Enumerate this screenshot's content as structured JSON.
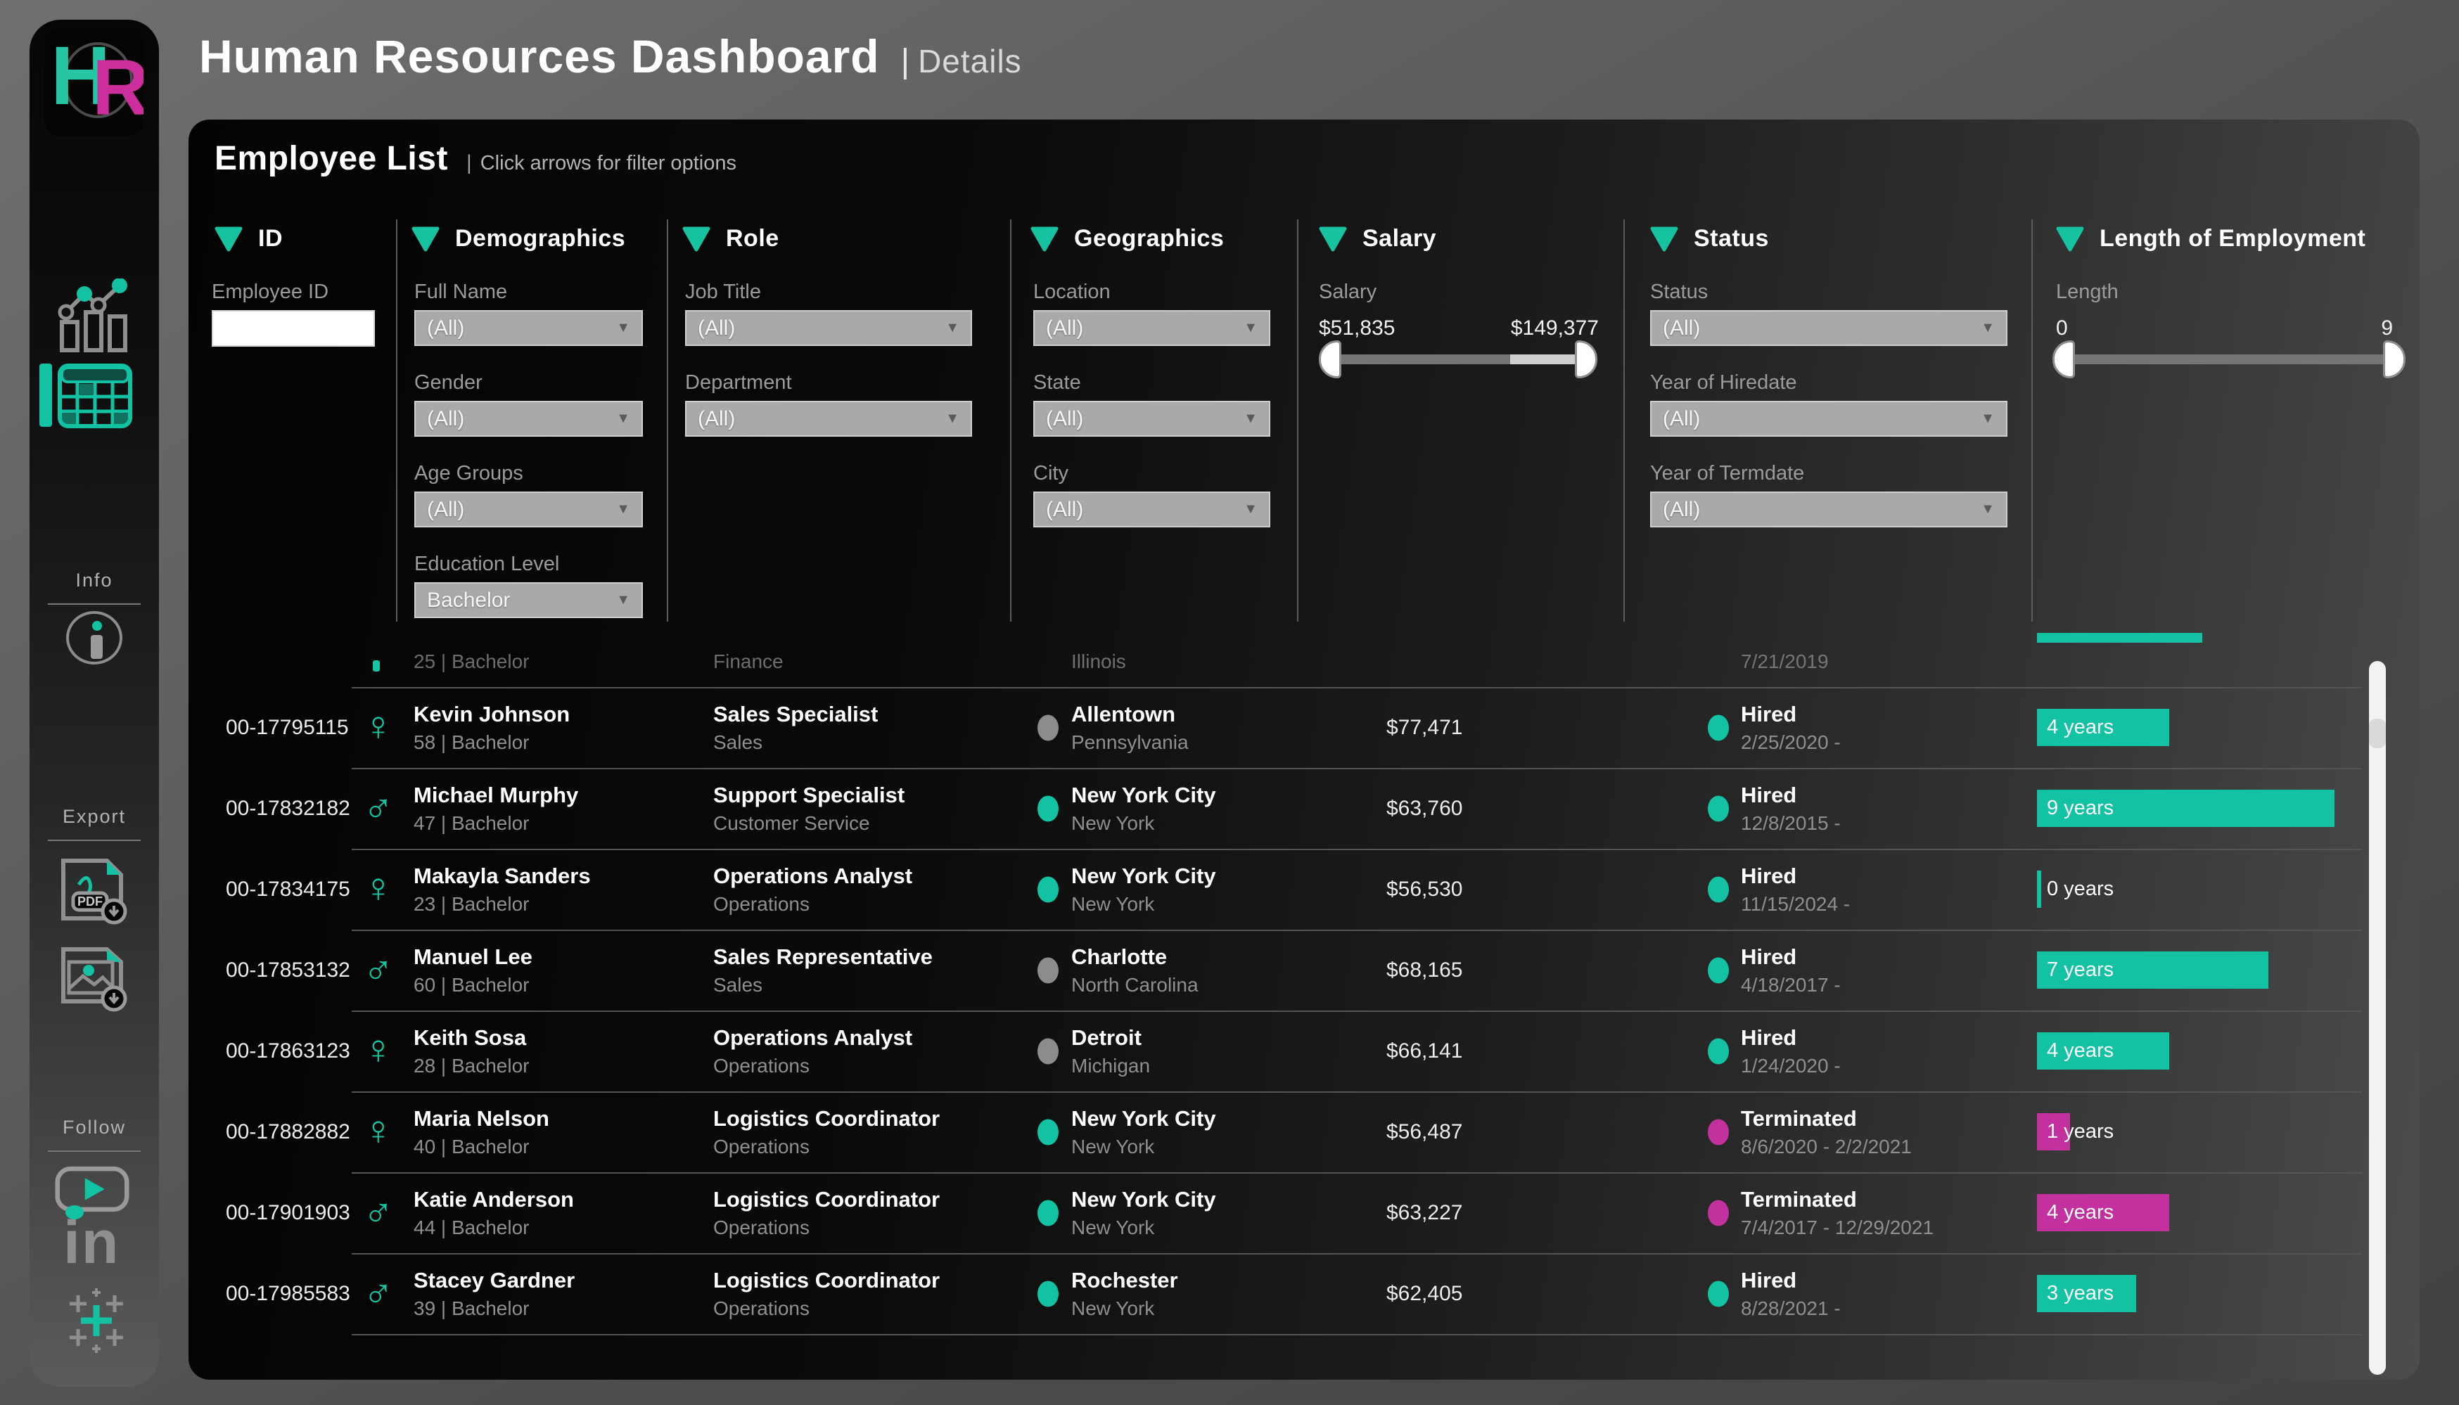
{
  "header": {
    "title": "Human Resources Dashboard",
    "separator": "|",
    "subtitle": "Details"
  },
  "logo": {
    "letter1": "H",
    "letter2": "R"
  },
  "sidebar": {
    "info_label": "Info",
    "export_label": "Export",
    "follow_label": "Follow",
    "nav_icons": [
      {
        "name": "charts-page-icon",
        "selected": false
      },
      {
        "name": "table-page-icon",
        "selected": true
      }
    ],
    "export_icons": [
      "pdf-download-icon",
      "image-download-icon"
    ],
    "follow_icons": [
      "youtube-icon",
      "linkedin-icon",
      "tableau-icon"
    ],
    "linkedin_text": "in"
  },
  "panel": {
    "title": "Employee List",
    "separator": "|",
    "subtitle": "Click arrows for filter options"
  },
  "filters": {
    "columns": [
      {
        "header": "ID",
        "fields": [
          {
            "label": "Employee ID",
            "type": "input",
            "value": ""
          }
        ]
      },
      {
        "header": "Demographics",
        "fields": [
          {
            "label": "Full Name",
            "value": "(All)"
          },
          {
            "label": "Gender",
            "value": "(All)"
          },
          {
            "label": "Age Groups",
            "value": "(All)"
          },
          {
            "label": "Education Level",
            "value": "Bachelor"
          }
        ]
      },
      {
        "header": "Role",
        "fields": [
          {
            "label": "Job Title",
            "value": "(All)"
          },
          {
            "label": "Department",
            "value": "(All)"
          }
        ]
      },
      {
        "header": "Geographics",
        "fields": [
          {
            "label": "Location",
            "value": "(All)"
          },
          {
            "label": "State",
            "value": "(All)"
          },
          {
            "label": "City",
            "value": "(All)"
          }
        ]
      },
      {
        "header": "Salary",
        "slider": {
          "label": "Salary",
          "min": "$51,835",
          "max": "$149,377"
        }
      },
      {
        "header": "Status",
        "fields": [
          {
            "label": "Status",
            "value": "(All)"
          },
          {
            "label": "Year of Hiredate",
            "value": "(All)"
          },
          {
            "label": "Year of Termdate",
            "value": "(All)"
          }
        ]
      },
      {
        "header": "Length of Employment",
        "slider": {
          "label": "Length",
          "min": "0",
          "max": "9"
        }
      }
    ]
  },
  "table": {
    "partial_row": {
      "age_edu": "25 | Bachelor",
      "department": "Finance",
      "state": "Illinois",
      "hire_date": "7/21/2019",
      "bar_years": 5
    },
    "rows": [
      {
        "id": "00-17795115",
        "gender": "female",
        "name": "Kevin Johnson",
        "age_edu": "58 | Bachelor",
        "job": "Sales Specialist",
        "department": "Sales",
        "city": "Allentown",
        "state": "Pennsylvania",
        "location_dot": "gray",
        "salary": "$77,471",
        "status": "Hired",
        "dates": "2/25/2020 -",
        "years": 4,
        "years_label": "4 years"
      },
      {
        "id": "00-17832182",
        "gender": "male",
        "name": "Michael Murphy",
        "age_edu": "47 | Bachelor",
        "job": "Support Specialist",
        "department": "Customer Service",
        "city": "New York City",
        "state": "New York",
        "location_dot": "teal",
        "salary": "$63,760",
        "status": "Hired",
        "dates": "12/8/2015 -",
        "years": 9,
        "years_label": "9 years"
      },
      {
        "id": "00-17834175",
        "gender": "female",
        "name": "Makayla Sanders",
        "age_edu": "23 | Bachelor",
        "job": "Operations Analyst",
        "department": "Operations",
        "city": "New York City",
        "state": "New York",
        "location_dot": "teal",
        "salary": "$56,530",
        "status": "Hired",
        "dates": "11/15/2024 -",
        "years": 0,
        "years_label": "0 years"
      },
      {
        "id": "00-17853132",
        "gender": "male",
        "name": "Manuel Lee",
        "age_edu": "60 | Bachelor",
        "job": "Sales Representative",
        "department": "Sales",
        "city": "Charlotte",
        "state": "North Carolina",
        "location_dot": "gray",
        "salary": "$68,165",
        "status": "Hired",
        "dates": "4/18/2017 -",
        "years": 7,
        "years_label": "7 years"
      },
      {
        "id": "00-17863123",
        "gender": "female",
        "name": "Keith Sosa",
        "age_edu": "28 | Bachelor",
        "job": "Operations Analyst",
        "department": "Operations",
        "city": "Detroit",
        "state": "Michigan",
        "location_dot": "gray",
        "salary": "$66,141",
        "status": "Hired",
        "dates": "1/24/2020 -",
        "years": 4,
        "years_label": "4 years"
      },
      {
        "id": "00-17882882",
        "gender": "female",
        "name": "Maria Nelson",
        "age_edu": "40 | Bachelor",
        "job": "Logistics Coordinator",
        "department": "Operations",
        "city": "New York City",
        "state": "New York",
        "location_dot": "teal",
        "salary": "$56,487",
        "status": "Terminated",
        "dates": "8/6/2020 - 2/2/2021",
        "years": 1,
        "years_label": "1 years"
      },
      {
        "id": "00-17901903",
        "gender": "male",
        "name": "Katie Anderson",
        "age_edu": "44 | Bachelor",
        "job": "Logistics Coordinator",
        "department": "Operations",
        "city": "New York City",
        "state": "New York",
        "location_dot": "teal",
        "salary": "$63,227",
        "status": "Terminated",
        "dates": "7/4/2017 - 12/29/2021",
        "years": 4,
        "years_label": "4 years"
      },
      {
        "id": "00-17985583",
        "gender": "male",
        "name": "Stacey Gardner",
        "age_edu": "39 | Bachelor",
        "job": "Logistics Coordinator",
        "department": "Operations",
        "city": "Rochester",
        "state": "New York",
        "location_dot": "teal",
        "salary": "$62,405",
        "status": "Hired",
        "dates": "8/28/2021 -",
        "years": 3,
        "years_label": "3 years"
      }
    ]
  },
  "colors": {
    "teal": "#12c2a2",
    "magenta": "#c2319e",
    "gray_dot": "#8c8c8c",
    "hired": "#12c2a2",
    "terminated": "#c2319e"
  }
}
